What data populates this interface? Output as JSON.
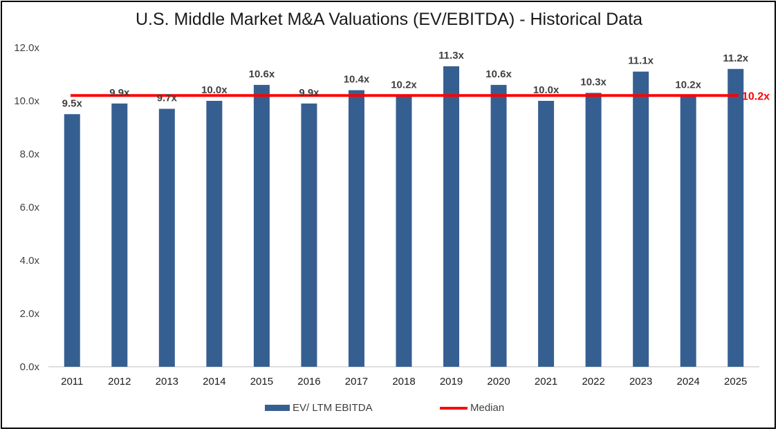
{
  "chart_data": {
    "type": "bar",
    "title": "U.S. Middle Market M&A Valuations (EV/EBITDA) - Historical Data",
    "categories": [
      "2011",
      "2012",
      "2013",
      "2014",
      "2015",
      "2016",
      "2017",
      "2018",
      "2019",
      "2020",
      "2021",
      "2022",
      "2023",
      "2024",
      "2025"
    ],
    "series": [
      {
        "name": "EV/ LTM EBITDA",
        "values": [
          9.5,
          9.9,
          9.7,
          10.0,
          10.6,
          9.9,
          10.4,
          10.2,
          11.3,
          10.6,
          10.0,
          10.3,
          11.1,
          10.2,
          11.2
        ],
        "labels": [
          "9.5x",
          "9.9x",
          "9.7x",
          "10.0x",
          "10.6x",
          "9.9x",
          "10.4x",
          "10.2x",
          "11.3x",
          "10.6x",
          "10.0x",
          "10.3x",
          "11.1x",
          "10.2x",
          "11.2x"
        ],
        "color": "#365f91"
      },
      {
        "name": "Median",
        "type": "line",
        "value": 10.2,
        "label": "10.2x",
        "color": "#ff0000"
      }
    ],
    "yticks": [
      "0.0x",
      "2.0x",
      "4.0x",
      "6.0x",
      "8.0x",
      "10.0x",
      "12.0x"
    ],
    "ylim": [
      0,
      12
    ],
    "grid": false,
    "legend": "bottom-center",
    "xlabel": "",
    "ylabel": ""
  }
}
